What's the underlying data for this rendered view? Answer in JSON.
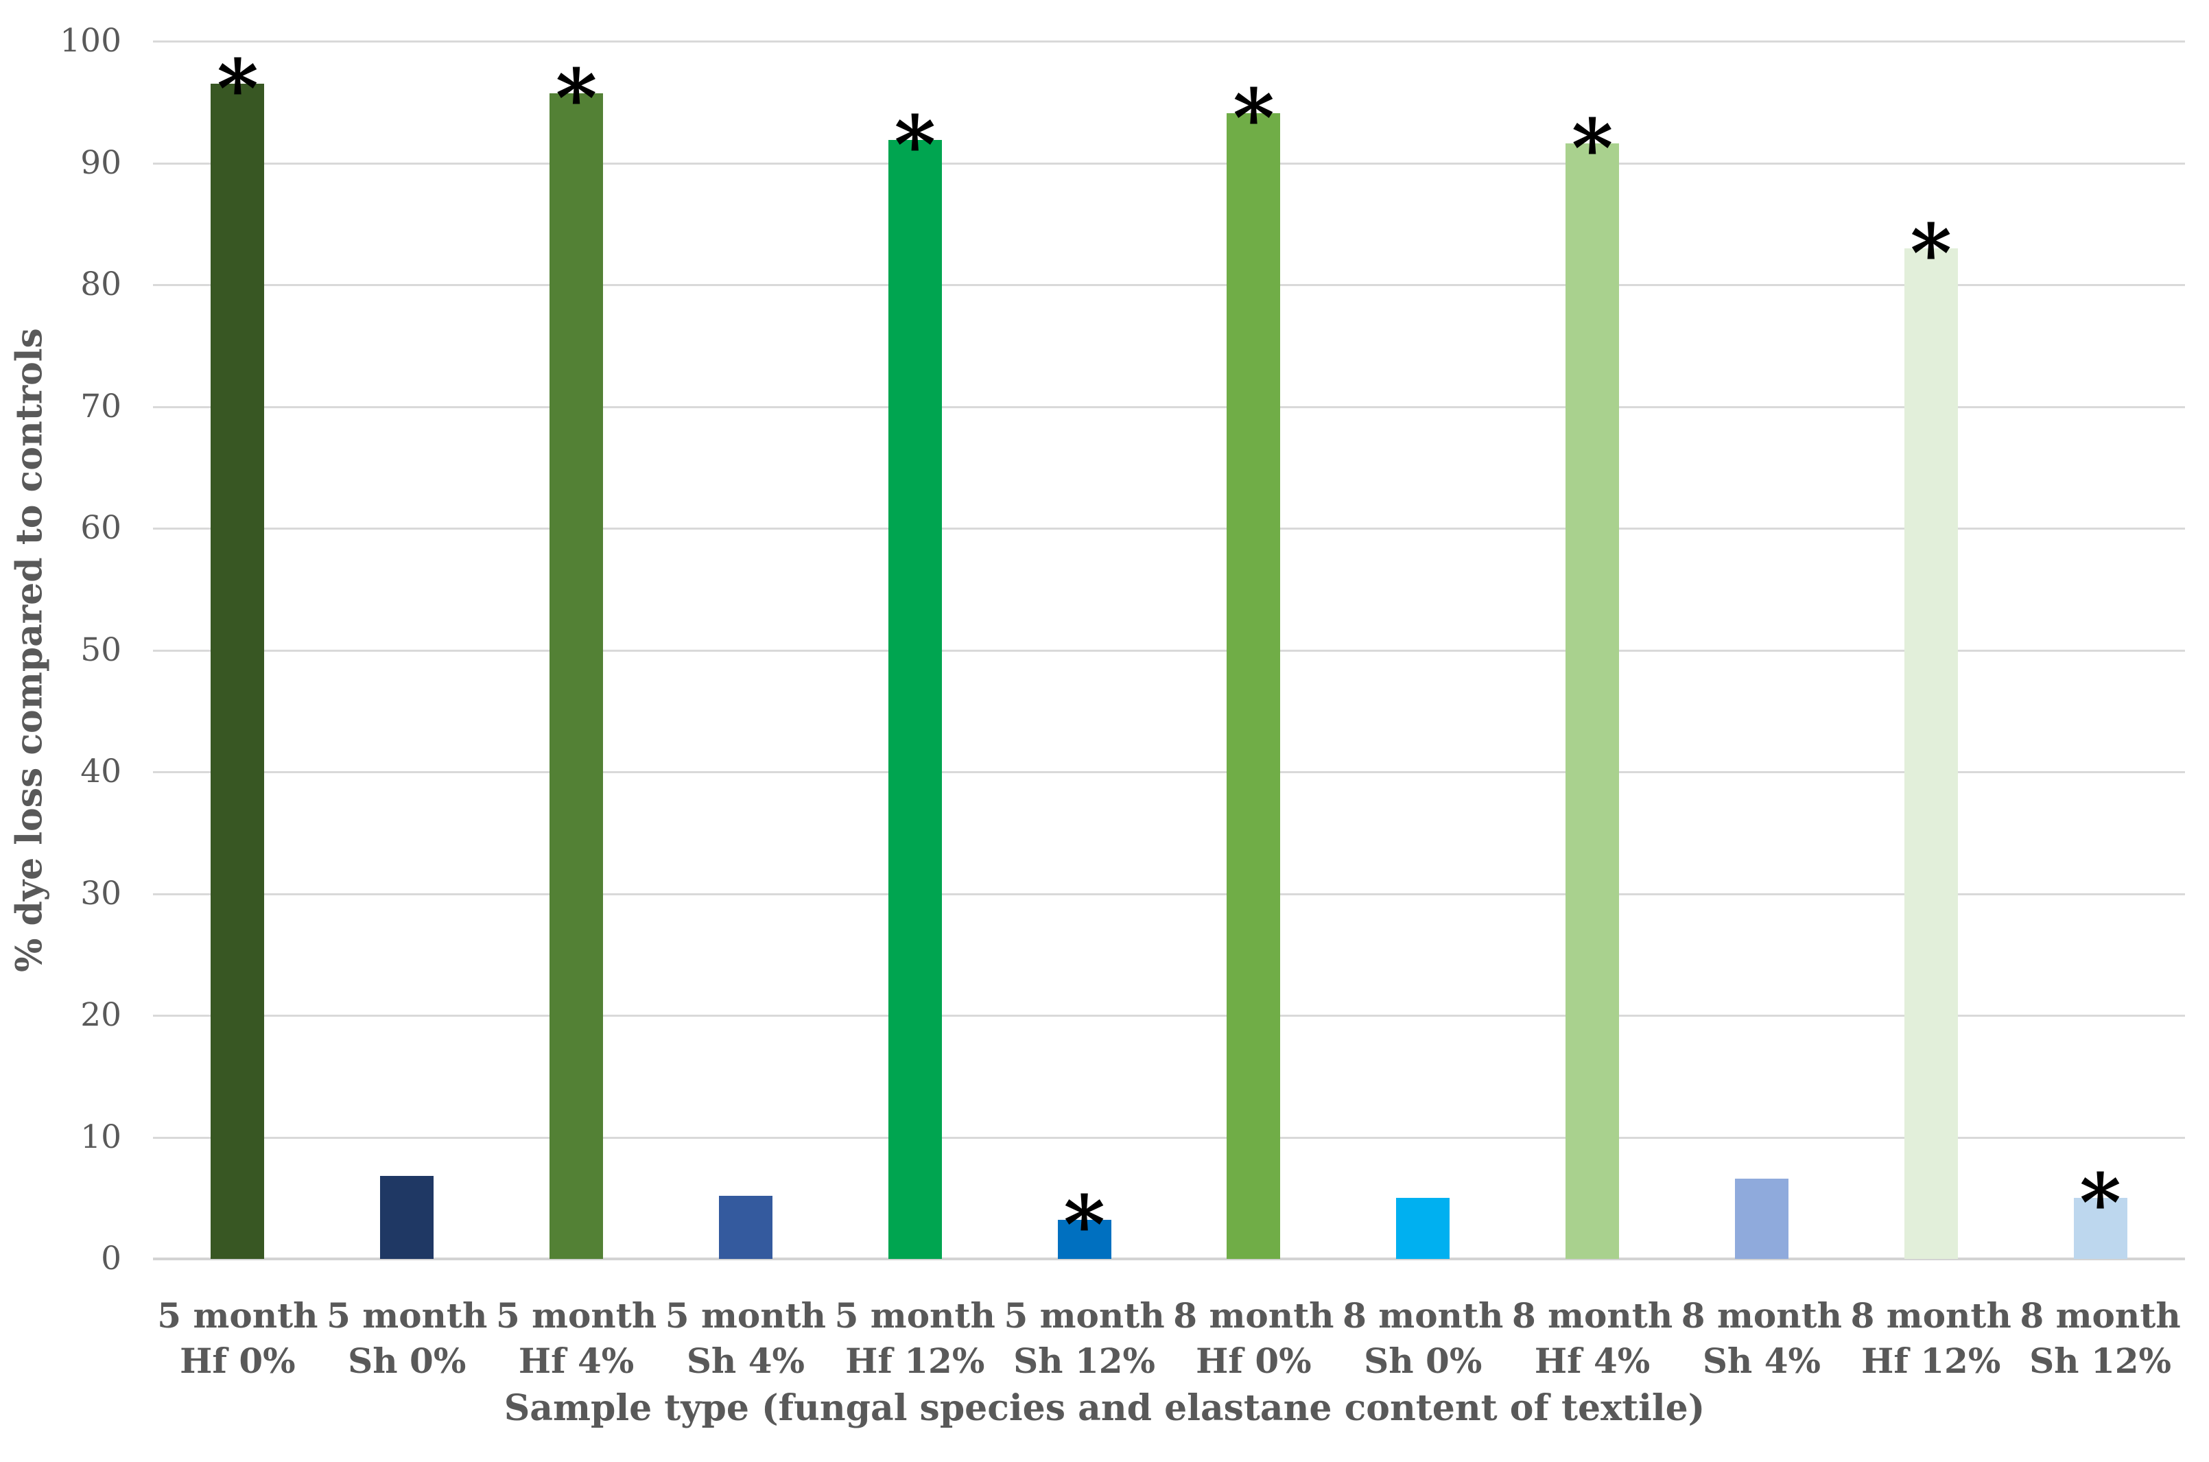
{
  "chart_data": {
    "type": "bar",
    "title": "",
    "xlabel": "Sample type (fungal species and elastane content of textile)",
    "ylabel": "% dye loss compared to controls",
    "ylim": [
      0,
      100
    ],
    "y_ticks": [
      0,
      10,
      20,
      30,
      40,
      50,
      60,
      70,
      80,
      90,
      100
    ],
    "grid": true,
    "legend": "none",
    "significance_marker": "*",
    "categories": [
      "5 month Hf 0%",
      "5 month Sh 0%",
      "5 month Hf 4%",
      "5 month Sh 4%",
      "5 month Hf 12%",
      "5 month Sh 12%",
      "8 month Hf 0%",
      "8 month Sh 0%",
      "8 month Hf 4%",
      "8 month Sh 4%",
      "8 month Hf 12%",
      "8 month Sh 12%"
    ],
    "categories_lines": [
      [
        "5 month",
        "Hf 0%"
      ],
      [
        "5 month",
        "Sh 0%"
      ],
      [
        "5 month",
        "Hf 4%"
      ],
      [
        "5 month",
        "Sh 4%"
      ],
      [
        "5 month",
        "Hf 12%"
      ],
      [
        "5 month",
        "Sh 12%"
      ],
      [
        "8 month",
        "Hf 0%"
      ],
      [
        "8 month",
        "Sh 0%"
      ],
      [
        "8 month",
        "Hf 4%"
      ],
      [
        "8 month",
        "Sh 4%"
      ],
      [
        "8 month",
        "Hf 12%"
      ],
      [
        "8 month",
        "Sh 12%"
      ]
    ],
    "values": [
      96.5,
      6.8,
      95.7,
      5.2,
      91.9,
      3.2,
      94.1,
      5.0,
      91.6,
      6.6,
      83.0,
      5.0
    ],
    "bar_colors": [
      "#385723",
      "#1F3864",
      "#538135",
      "#345A9E",
      "#00A550",
      "#0070C0",
      "#70AD47",
      "#00B0F0",
      "#A9D18E",
      "#8FAADC",
      "#E2EFDA",
      "#BDD7EE"
    ],
    "significant": [
      true,
      false,
      true,
      false,
      true,
      true,
      true,
      false,
      true,
      false,
      true,
      true
    ]
  },
  "colors": {
    "text": "#595959",
    "gridline": "#D9D9D9",
    "baseline": "#D0D0D0",
    "marker": "#000000",
    "background": "#FFFFFF"
  }
}
